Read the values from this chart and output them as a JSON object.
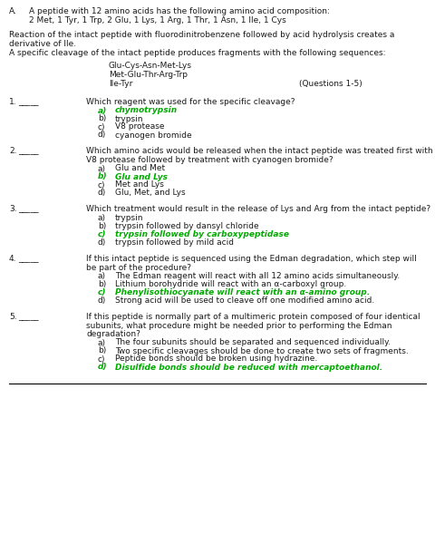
{
  "bg_color": "#ffffff",
  "text_color": "#1a1a1a",
  "green_color": "#00aa00",
  "title_section": {
    "label": "A.",
    "line1": "A peptide with 12 amino acids has the following amino acid composition:",
    "line2": "2 Met, 1 Tyr, 1 Trp, 2 Glu, 1 Lys, 1 Arg, 1 Thr, 1 Asn, 1 Ile, 1 Cys"
  },
  "intro": [
    "Reaction of the intact peptide with fluorodinitrobenzene followed by acid hydrolysis creates a",
    "derivative of Ile.",
    "A specific cleavage of the intact peptide produces fragments with the following sequences:"
  ],
  "fragments": [
    "Glu-Cys-Asn-Met-Lys",
    "Met-Glu-Thr-Arg-Trp",
    "Ile-Tyr"
  ],
  "questions_label": "(Questions 1-5)",
  "questions": [
    {
      "num": "1.",
      "blank": "_____",
      "question": "Which reagent was used for the specific cleavage?",
      "answers": [
        {
          "letter": "a)",
          "text": "chymotrypsin",
          "correct": true
        },
        {
          "letter": "b)",
          "text": "trypsin",
          "correct": false
        },
        {
          "letter": "c)",
          "text": "V8 protease",
          "correct": false
        },
        {
          "letter": "d)",
          "text": "cyanogen bromide",
          "correct": false
        }
      ]
    },
    {
      "num": "2.",
      "blank": "_____",
      "question": "Which amino acids would be released when the intact peptide was treated first with",
      "question2": "V8 protease followed by treatment with cyanogen bromide?",
      "answers": [
        {
          "letter": "a)",
          "text": "Glu and Met",
          "correct": false
        },
        {
          "letter": "b)",
          "text": "Glu and Lys",
          "correct": true
        },
        {
          "letter": "c)",
          "text": "Met and Lys",
          "correct": false
        },
        {
          "letter": "d)",
          "text": "Glu, Met, and Lys",
          "correct": false
        }
      ]
    },
    {
      "num": "3.",
      "blank": "_____",
      "question": "Which treatment would result in the release of Lys and Arg from the intact peptide?",
      "answers": [
        {
          "letter": "a)",
          "text": "trypsin",
          "correct": false
        },
        {
          "letter": "b)",
          "text": "trypsin followed by dansyl chloride",
          "correct": false
        },
        {
          "letter": "c)",
          "text": "trypsin followed by carboxypeptidase",
          "correct": true
        },
        {
          "letter": "d)",
          "text": "trypsin followed by mild acid",
          "correct": false
        }
      ]
    },
    {
      "num": "4.",
      "blank": "_____",
      "question": "If this intact peptide is sequenced using the Edman degradation, which step will",
      "question2": "be part of the procedure?",
      "answers": [
        {
          "letter": "a)",
          "text": "The Edman reagent will react with all 12 amino acids simultaneously.",
          "correct": false
        },
        {
          "letter": "b)",
          "text": "Lithium borohydride will react with an α-carboxyl group.",
          "correct": false
        },
        {
          "letter": "c)",
          "text": "Phenylisothiocyanate will react with an α-amino group.",
          "correct": true
        },
        {
          "letter": "d)",
          "text": "Strong acid will be used to cleave off one modified amino acid.",
          "correct": false
        }
      ]
    },
    {
      "num": "5.",
      "blank": "_____",
      "question": "If this peptide is normally part of a multimeric protein composed of four identical",
      "question2": "subunits, what procedure might be needed prior to performing the Edman",
      "question3": "degradation?",
      "answers": [
        {
          "letter": "a)",
          "text": "The four subunits should be separated and sequenced individually.",
          "correct": false
        },
        {
          "letter": "b)",
          "text": "Two specific cleavages should be done to create two sets of fragments.",
          "correct": false
        },
        {
          "letter": "c)",
          "text": "Peptide bonds should be broken using hydrazine.",
          "correct": false
        },
        {
          "letter": "d)",
          "text": "Disulfide bonds should be reduced with mercaptoethanol.",
          "correct": true
        }
      ]
    }
  ]
}
